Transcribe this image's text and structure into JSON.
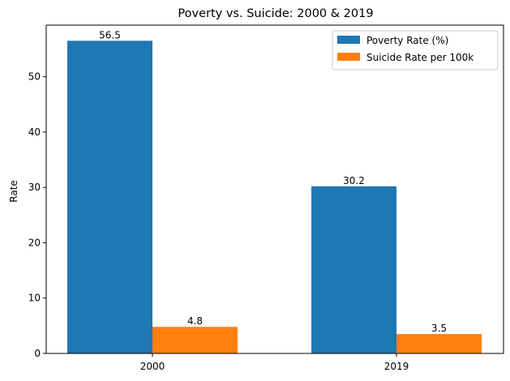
{
  "chart_data": {
    "type": "bar",
    "title": "Poverty vs. Suicide: 2000 & 2019",
    "xlabel": "",
    "ylabel": "Rate",
    "categories": [
      "2000",
      "2019"
    ],
    "series": [
      {
        "name": "Poverty Rate (%)",
        "values": [
          56.5,
          30.2
        ],
        "color": "#1f77b4"
      },
      {
        "name": "Suicide Rate per 100k",
        "values": [
          4.8,
          3.5
        ],
        "color": "#ff7f0e"
      }
    ],
    "data_labels": [
      [
        "56.5",
        "30.2"
      ],
      [
        "4.8",
        "3.5"
      ]
    ],
    "ylim": [
      0,
      59.325
    ],
    "yticks": [
      0,
      10,
      20,
      30,
      40,
      50
    ],
    "grid": false,
    "legend_position": "upper right"
  }
}
